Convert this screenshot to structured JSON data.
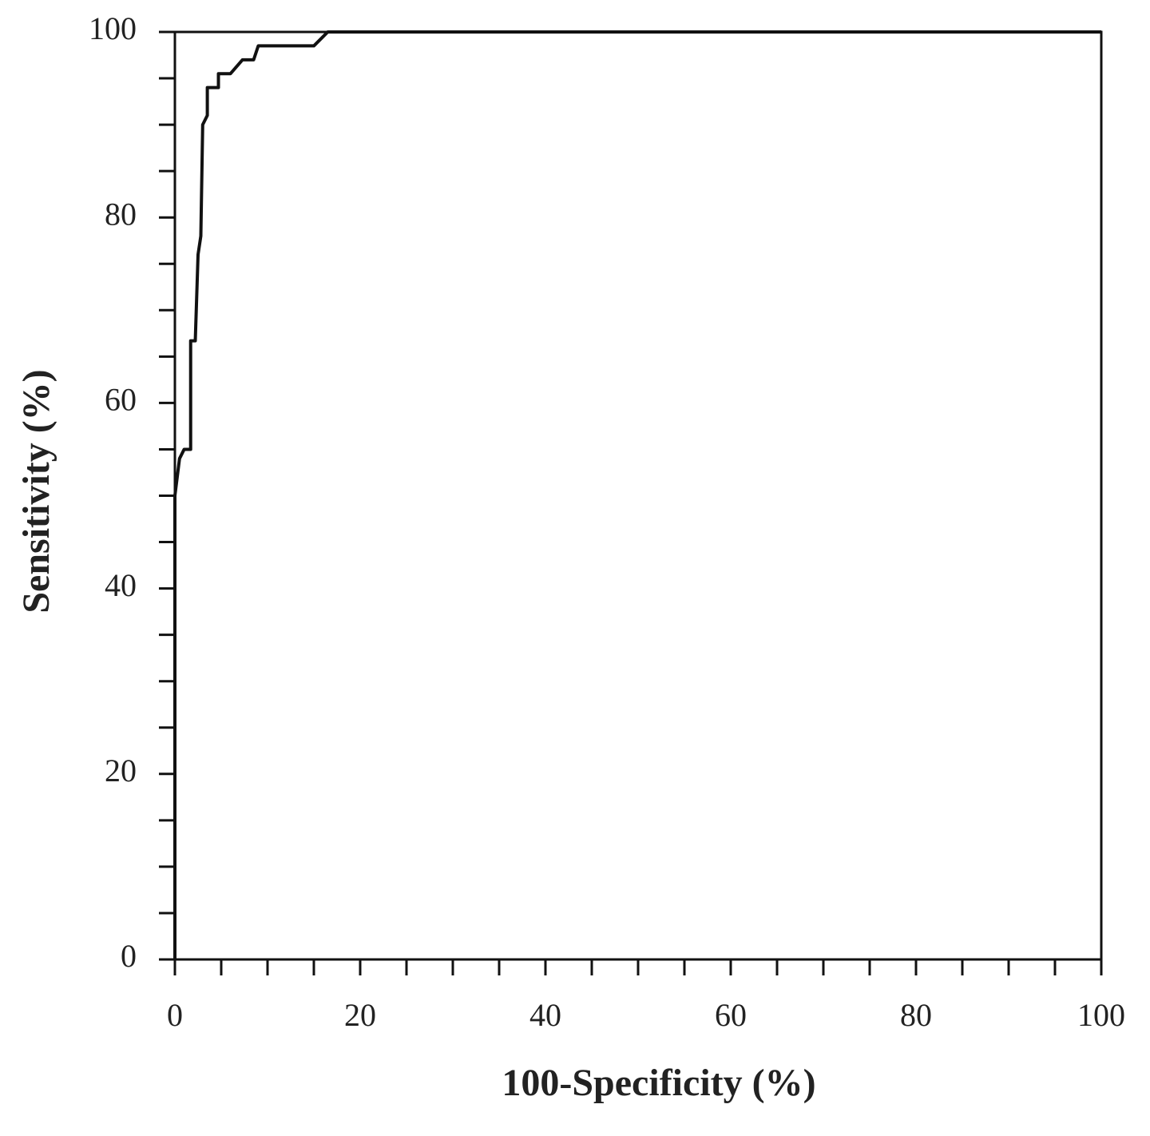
{
  "chart_data": {
    "type": "line",
    "xlabel": "100-Specificity (%)",
    "ylabel": "Sensitivity (%)",
    "xlim": [
      0,
      100
    ],
    "ylim": [
      0,
      100
    ],
    "xticks": [
      0,
      20,
      40,
      60,
      80,
      100
    ],
    "yticks": [
      0,
      20,
      40,
      60,
      80,
      100
    ],
    "xminorticks": [
      5,
      10,
      15,
      25,
      30,
      35,
      45,
      50,
      55,
      65,
      70,
      75,
      85,
      90,
      95
    ],
    "yminorticks": [
      5,
      10,
      15,
      25,
      30,
      35,
      45,
      50,
      55,
      65,
      70,
      75,
      85,
      90,
      95
    ],
    "series": [
      {
        "color": "#111111",
        "x": [
          0,
          0,
          0.5,
          1,
          1.7,
          1.7,
          2.2,
          2.5,
          2.8,
          3,
          3.5,
          3.5,
          4.7,
          4.7,
          6,
          7.3,
          8.5,
          9,
          15,
          16,
          16.5,
          100
        ],
        "values": [
          0,
          50,
          54,
          55,
          55,
          66.7,
          66.7,
          76,
          78,
          90,
          91,
          94,
          94,
          95.5,
          95.5,
          97,
          97,
          98.5,
          98.5,
          99.5,
          100,
          100
        ]
      }
    ]
  }
}
